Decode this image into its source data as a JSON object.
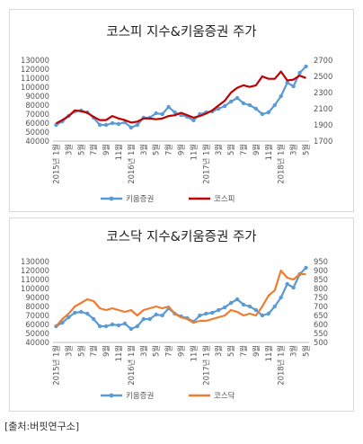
{
  "source": "[출처:버핏연구소]",
  "chart_data": [
    {
      "type": "line",
      "title": "코스피 지수&키움증권 주가",
      "x": [
        "2015년 1월",
        "2",
        "3",
        "4",
        "5",
        "6",
        "7",
        "8",
        "9",
        "10",
        "11",
        "12",
        "2016년 1월",
        "2",
        "3",
        "4",
        "5",
        "6",
        "7",
        "8",
        "9",
        "10",
        "11",
        "12",
        "2017년 1월",
        "2",
        "3",
        "4",
        "5",
        "6",
        "7",
        "8",
        "9",
        "10",
        "11",
        "12",
        "2018년 1월",
        "2",
        "3",
        "4",
        "5"
      ],
      "x_tick_labels": [
        "2015년 1월",
        "3월",
        "5월",
        "7월",
        "9월",
        "11월",
        "2016년 1월",
        "3월",
        "5월",
        "7월",
        "9월",
        "11월",
        "2017년 1월",
        "3월",
        "5월",
        "7월",
        "9월",
        "11월",
        "2018년 1월",
        "3월",
        "5월"
      ],
      "left_axis": {
        "min": 40000,
        "max": 130000,
        "step": 10000,
        "ticks": [
          "130000",
          "120000",
          "110000",
          "100000",
          "90000",
          "80000",
          "70000",
          "60000",
          "50000",
          "40000"
        ]
      },
      "right_axis": {
        "min": 1700,
        "max": 2700,
        "step": 200,
        "ticks": [
          "2700",
          "2500",
          "2300",
          "2100",
          "1900",
          "1700"
        ]
      },
      "series": [
        {
          "name": "키움증권",
          "axis": "left",
          "color": "#5b9bd5",
          "marker": true,
          "values": [
            58000,
            62000,
            68000,
            73000,
            74000,
            72000,
            66000,
            58000,
            58000,
            60000,
            59000,
            61000,
            55000,
            58000,
            66000,
            66000,
            71000,
            70000,
            78000,
            72000,
            69000,
            67000,
            63000,
            70000,
            72000,
            73000,
            76000,
            79000,
            84000,
            88000,
            82000,
            80000,
            76000,
            70000,
            72000,
            80000,
            90000,
            105000,
            101000,
            116000,
            123000
          ]
        },
        {
          "name": "코스피",
          "axis": "right",
          "color": "#c00000",
          "marker": false,
          "values": [
            1920,
            1960,
            2010,
            2080,
            2070,
            2050,
            2000,
            1960,
            1960,
            2010,
            1980,
            1960,
            1930,
            1940,
            1980,
            1980,
            1970,
            1980,
            2010,
            2020,
            2050,
            2020,
            1990,
            2010,
            2040,
            2080,
            2140,
            2200,
            2300,
            2360,
            2390,
            2370,
            2390,
            2500,
            2470,
            2470,
            2560,
            2450,
            2460,
            2510,
            2480
          ]
        }
      ],
      "legend": "bottom",
      "grid": false
    },
    {
      "type": "line",
      "title": "코스닥 지수&키움증권 주가",
      "x": [
        "2015년 1월",
        "2",
        "3",
        "4",
        "5",
        "6",
        "7",
        "8",
        "9",
        "10",
        "11",
        "12",
        "2016년 1월",
        "2",
        "3",
        "4",
        "5",
        "6",
        "7",
        "8",
        "9",
        "10",
        "11",
        "12",
        "2017년 1월",
        "2",
        "3",
        "4",
        "5",
        "6",
        "7",
        "8",
        "9",
        "10",
        "11",
        "12",
        "2018년 1월",
        "2",
        "3",
        "4",
        "5"
      ],
      "x_tick_labels": [
        "2015년 1월",
        "3월",
        "5월",
        "7월",
        "9월",
        "11월",
        "2016년 1월",
        "3월",
        "5월",
        "7월",
        "9월",
        "11월",
        "2017년 1월",
        "3월",
        "5월",
        "7월",
        "9월",
        "11월",
        "2018년 1월",
        "3월",
        "5월"
      ],
      "left_axis": {
        "min": 40000,
        "max": 130000,
        "step": 10000,
        "ticks": [
          "130000",
          "120000",
          "110000",
          "100000",
          "90000",
          "80000",
          "70000",
          "60000",
          "50000",
          "40000"
        ]
      },
      "right_axis": {
        "min": 500,
        "max": 950,
        "step": 50,
        "ticks": [
          "950",
          "900",
          "850",
          "800",
          "750",
          "700",
          "650",
          "600",
          "550",
          "500"
        ]
      },
      "series": [
        {
          "name": "키움증권",
          "axis": "left",
          "color": "#5b9bd5",
          "marker": true,
          "values": [
            58000,
            62000,
            68000,
            73000,
            74000,
            72000,
            66000,
            58000,
            58000,
            60000,
            59000,
            61000,
            55000,
            58000,
            66000,
            66000,
            71000,
            70000,
            78000,
            72000,
            69000,
            67000,
            63000,
            70000,
            72000,
            73000,
            76000,
            79000,
            84000,
            88000,
            82000,
            80000,
            76000,
            70000,
            72000,
            80000,
            90000,
            105000,
            101000,
            116000,
            123000
          ]
        },
        {
          "name": "코스닥",
          "axis": "right",
          "color": "#ed7d31",
          "marker": false,
          "values": [
            590,
            630,
            660,
            700,
            720,
            740,
            730,
            690,
            680,
            690,
            680,
            670,
            680,
            650,
            680,
            690,
            700,
            690,
            700,
            660,
            640,
            630,
            610,
            620,
            620,
            630,
            640,
            650,
            680,
            670,
            650,
            660,
            650,
            700,
            760,
            790,
            900,
            860,
            850,
            880,
            880
          ]
        }
      ],
      "legend": "bottom",
      "grid": false
    }
  ]
}
